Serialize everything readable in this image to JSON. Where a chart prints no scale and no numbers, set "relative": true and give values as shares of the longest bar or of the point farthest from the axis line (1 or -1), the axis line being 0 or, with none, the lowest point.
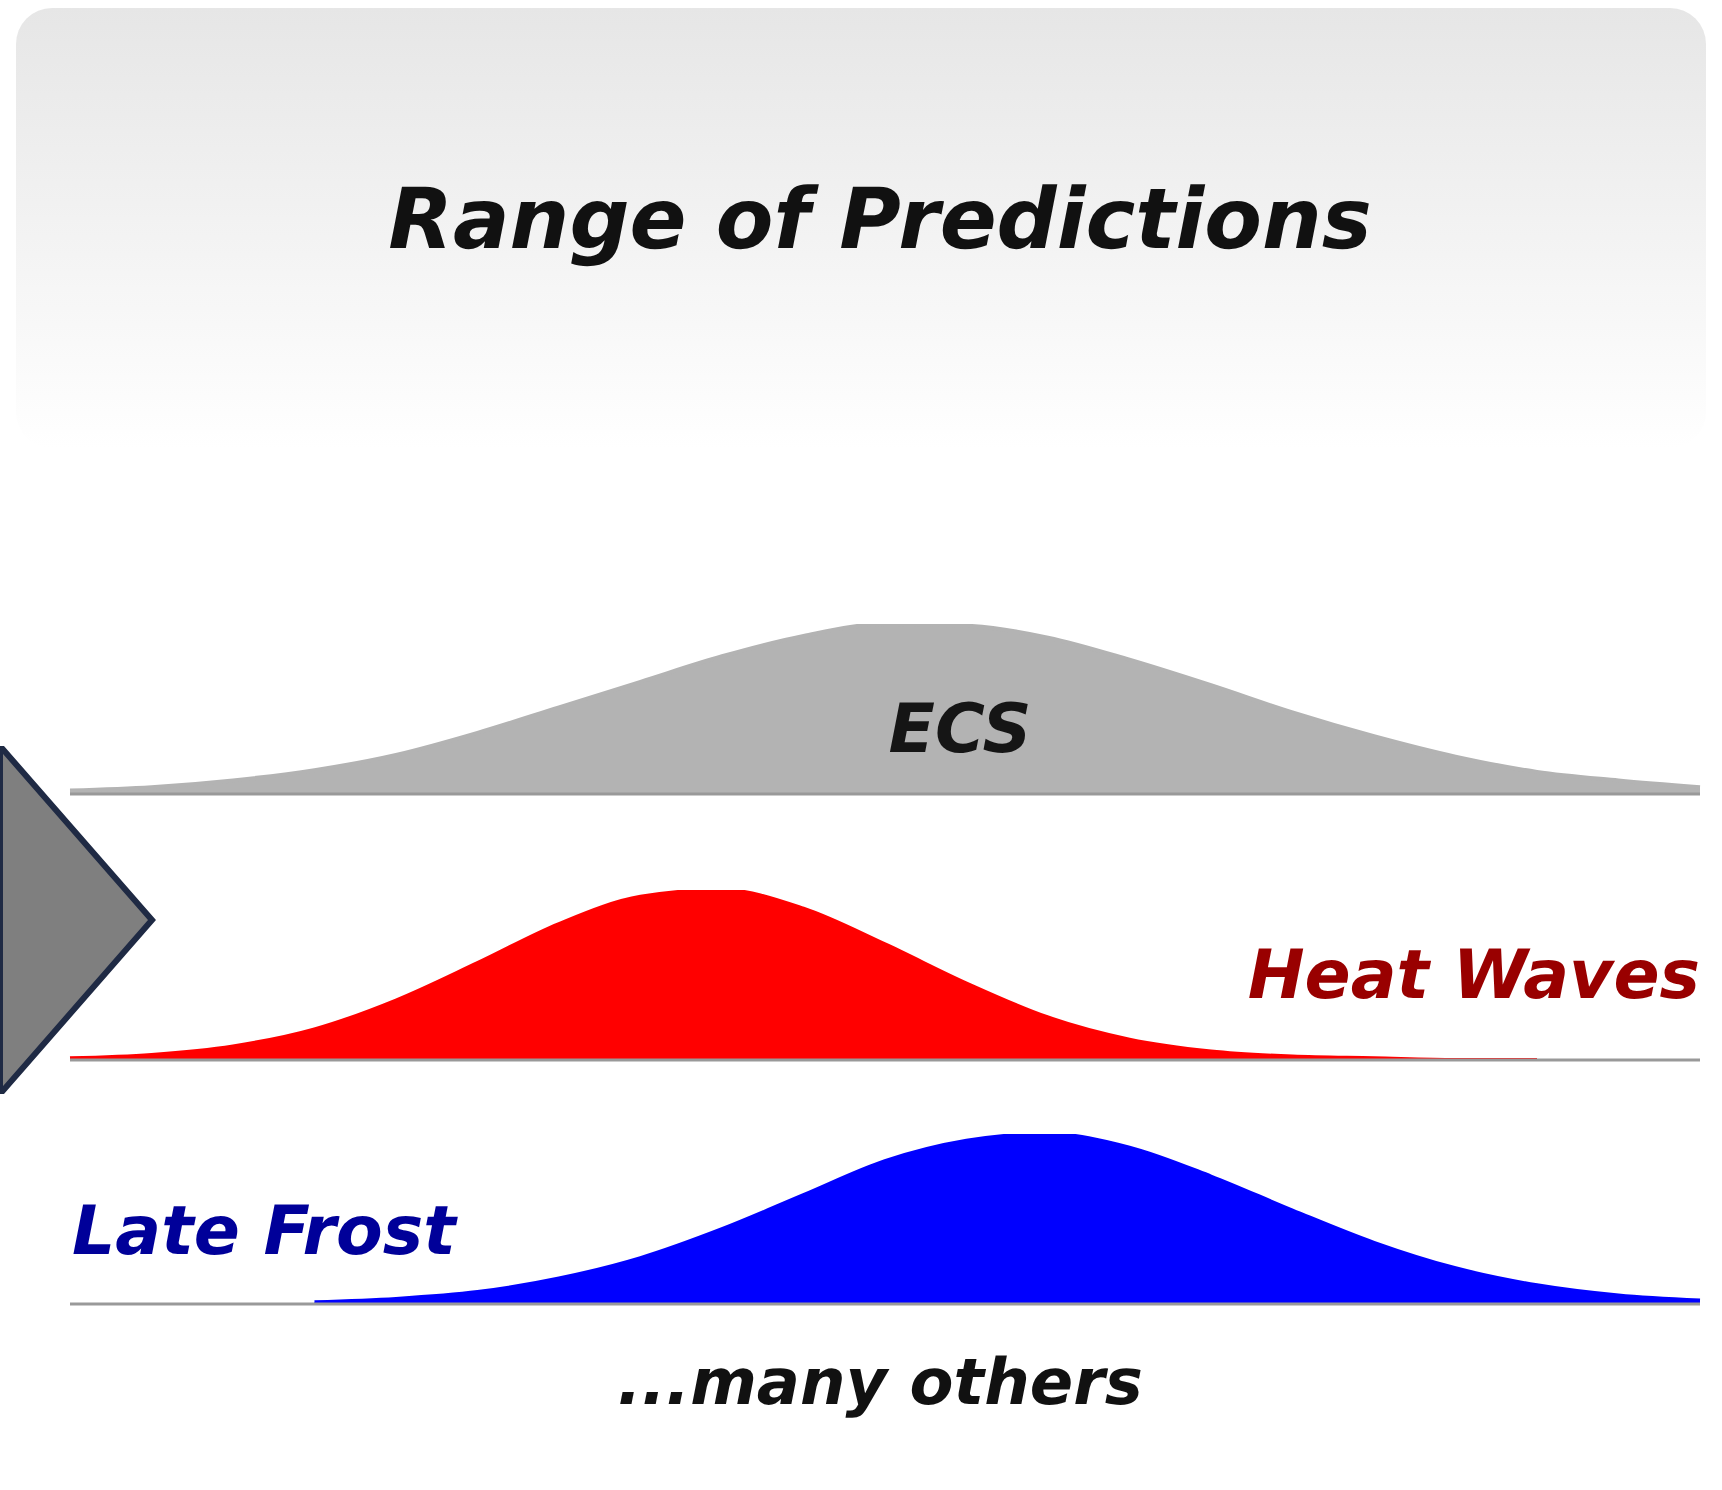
{
  "chart_data": [
    {
      "type": "area",
      "title": "Range of Predictions",
      "relative": true,
      "tick_labels": false,
      "grid": false,
      "legend": false,
      "categories": [
        null,
        null,
        null,
        null,
        null,
        null,
        null,
        null,
        null,
        null,
        null,
        null,
        null,
        null,
        null,
        null,
        null,
        null,
        null,
        null,
        null
      ],
      "series": [
        {
          "name": "ECS",
          "color": "#b3b3b3",
          "values": [
            0.02,
            0.04,
            0.08,
            0.14,
            0.23,
            0.36,
            0.51,
            0.66,
            0.81,
            0.93,
            1,
            0.99,
            0.92,
            0.79,
            0.64,
            0.48,
            0.34,
            0.22,
            0.13,
            0.08,
            0.04
          ]
        }
      ]
    },
    {
      "type": "area",
      "relative": true,
      "tick_labels": false,
      "grid": false,
      "legend": false,
      "categories": [
        null,
        null,
        null,
        null,
        null,
        null,
        null,
        null,
        null,
        null,
        null,
        null,
        null,
        null,
        null,
        null,
        null,
        null,
        null,
        null,
        null
      ],
      "series": [
        {
          "name": "Heat Waves",
          "color": "#ff0000",
          "values": [
            0.01,
            0.03,
            0.08,
            0.18,
            0.35,
            0.57,
            0.8,
            0.96,
            1,
            0.89,
            0.68,
            0.45,
            0.25,
            0.12,
            0.05,
            0.02,
            0.01,
            0,
            0,
            null,
            null
          ]
        }
      ]
    },
    {
      "type": "area",
      "relative": true,
      "tick_labels": false,
      "grid": false,
      "legend": false,
      "annotations": [
        "...many others"
      ],
      "categories": [
        null,
        null,
        null,
        null,
        null,
        null,
        null,
        null,
        null,
        null,
        null,
        null,
        null,
        null,
        null,
        null,
        null,
        null,
        null,
        null,
        null
      ],
      "series": [
        {
          "name": "Late Frost",
          "color": "#0000ff",
          "values": [
            null,
            null,
            null,
            0.01,
            0.03,
            0.07,
            0.15,
            0.27,
            0.44,
            0.64,
            0.84,
            0.96,
            1,
            0.92,
            0.75,
            0.55,
            0.36,
            0.21,
            0.11,
            0.05,
            0.02
          ]
        }
      ]
    }
  ]
}
